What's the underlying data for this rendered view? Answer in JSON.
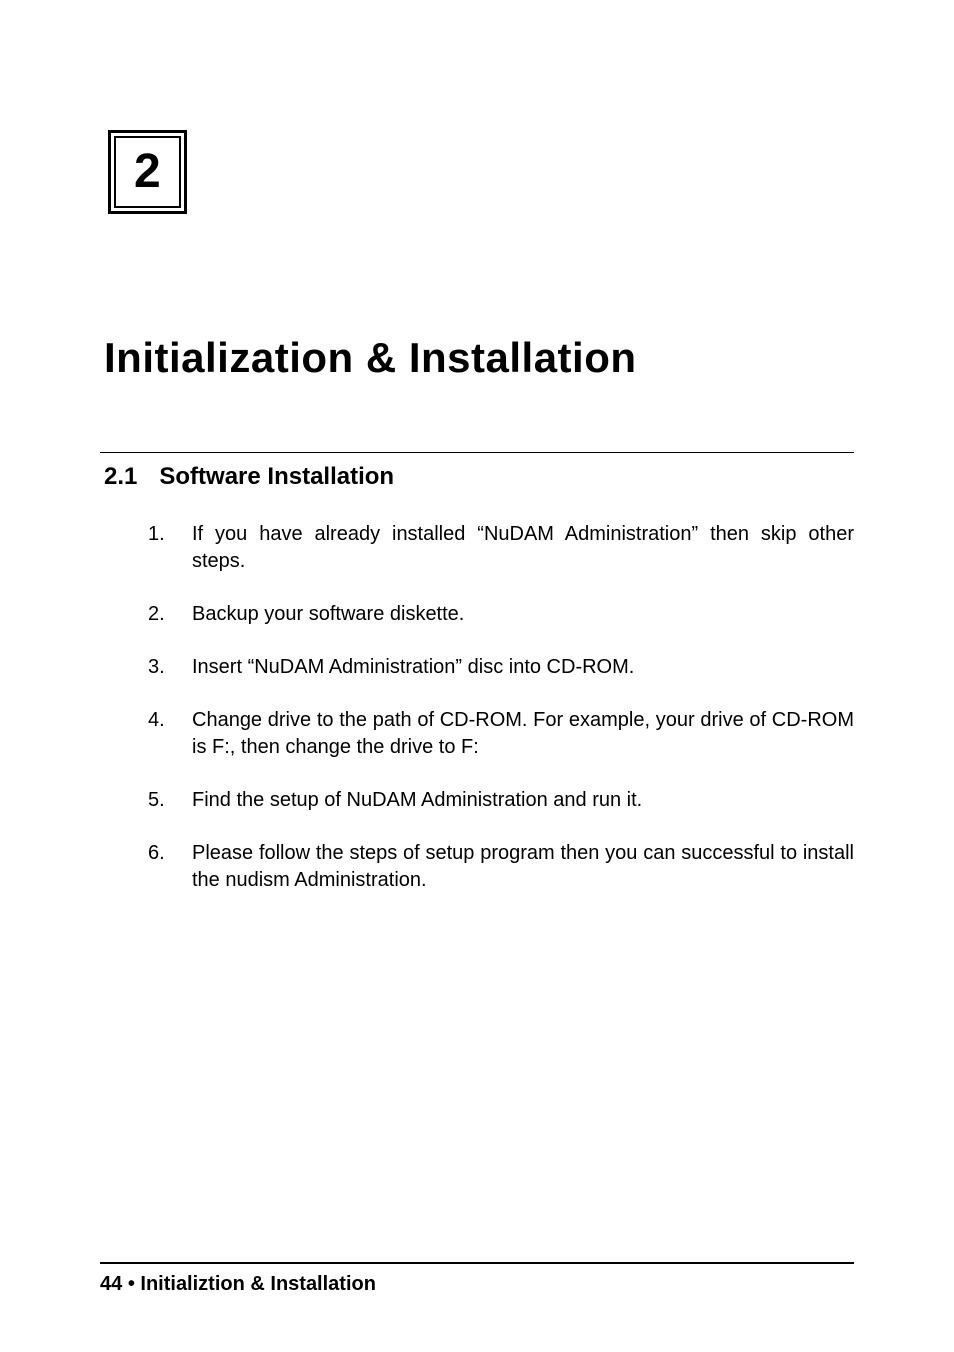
{
  "chapter": {
    "number": "2",
    "title": "Initialization & Installation"
  },
  "section": {
    "number": "2.1",
    "title": "Software Installation"
  },
  "steps": [
    {
      "n": "1.",
      "text": "If you have already installed “NuDAM Administration” then skip other steps."
    },
    {
      "n": "2.",
      "text": "Backup your software diskette."
    },
    {
      "n": "3.",
      "text": "Insert “NuDAM Administration” disc into CD-ROM."
    },
    {
      "n": "4.",
      "text": "Change drive to the path of CD-ROM. For example, your drive of CD-ROM is F:, then change the drive to F:"
    },
    {
      "n": "5.",
      "text": "Find the setup of NuDAM Administration and run it."
    },
    {
      "n": "6.",
      "text": "Please follow the steps of setup program then you can successful to install the nudism Administration."
    }
  ],
  "footer": {
    "page": "44",
    "separator": "•",
    "label": "Initializtion & Installation"
  },
  "colors": {
    "text": "#000000",
    "background": "#ffffff",
    "rule": "#000000"
  },
  "typography": {
    "chapter_number_size_pt": 48,
    "chapter_title_size_pt": 42,
    "section_heading_size_pt": 24,
    "body_size_pt": 20,
    "footer_size_pt": 20,
    "font_family": "Arial"
  }
}
